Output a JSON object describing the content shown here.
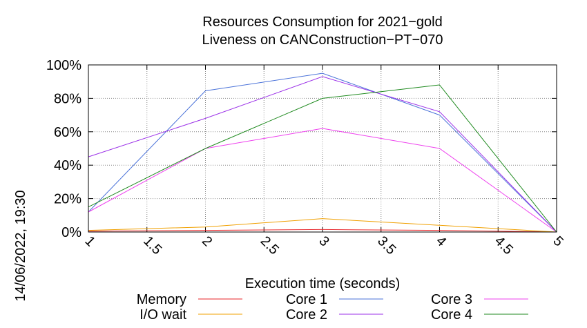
{
  "chart_data": {
    "type": "line",
    "title_line1": "Resources Consumption for 2021−gold",
    "title_line2": "Liveness on CANConstruction−PT−070",
    "xlabel": "Execution time (seconds)",
    "ylabel": "",
    "side_label": "14/06/2022, 19:30",
    "xlim": [
      1,
      5
    ],
    "ylim": [
      0,
      100
    ],
    "x_ticks": [
      1,
      1.5,
      2,
      2.5,
      3,
      3.5,
      4,
      4.5,
      5
    ],
    "x_tick_labels": [
      "1",
      "1.5",
      "2",
      "2.5",
      "3",
      "3.5",
      "4",
      "4.5",
      "5"
    ],
    "y_ticks": [
      0,
      20,
      40,
      60,
      80,
      100
    ],
    "y_tick_labels": [
      "0%",
      "20%",
      "40%",
      "60%",
      "80%",
      "100%"
    ],
    "grid": true,
    "legend_position": "bottom",
    "x": [
      1,
      2,
      3,
      4,
      5
    ],
    "series": [
      {
        "name": "Memory",
        "color": "#e8262a",
        "values": [
          0.5,
          1,
          1.5,
          1,
          0
        ]
      },
      {
        "name": "I/O wait",
        "color": "#f0a000",
        "values": [
          1,
          3,
          8,
          4,
          0
        ]
      },
      {
        "name": "Core 1",
        "color": "#4a72d9",
        "values": [
          12,
          84.5,
          95,
          70,
          0
        ]
      },
      {
        "name": "Core 2",
        "color": "#9b30e8",
        "values": [
          45,
          68,
          93,
          72,
          0
        ]
      },
      {
        "name": "Core 3",
        "color": "#ee40ee",
        "values": [
          12,
          50,
          62,
          50,
          0
        ]
      },
      {
        "name": "Core 4",
        "color": "#1f8a1f",
        "values": [
          15,
          50,
          80,
          88,
          0
        ]
      }
    ]
  }
}
